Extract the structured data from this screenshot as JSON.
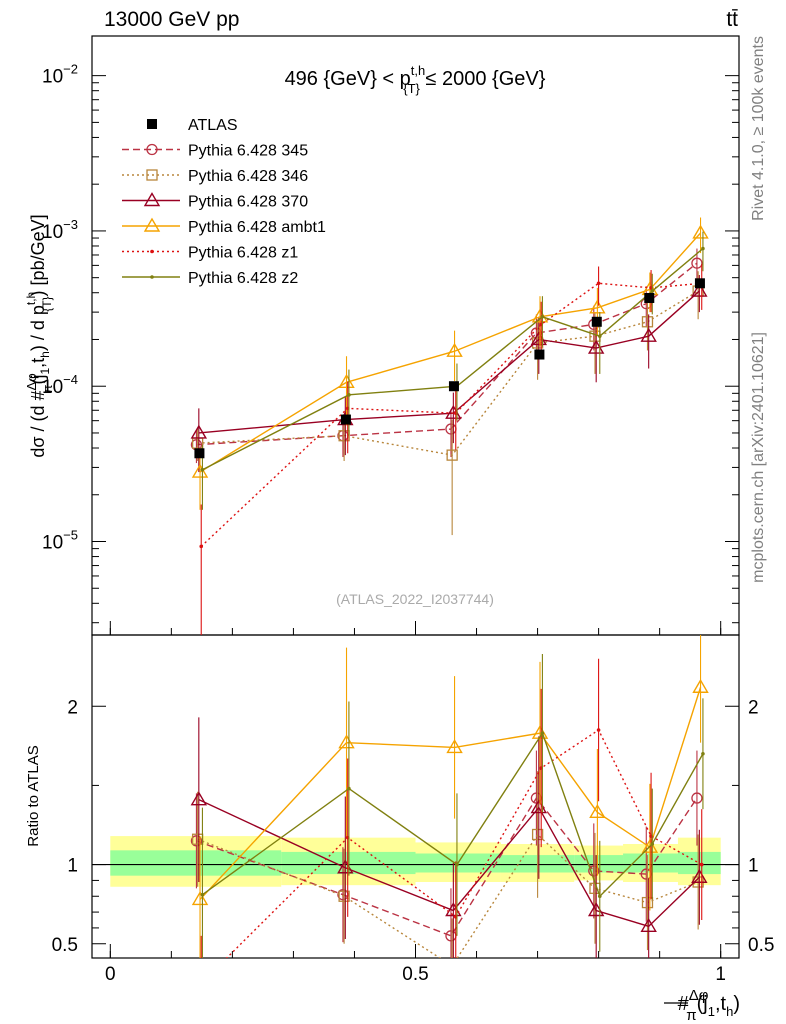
{
  "chart_data": {
    "type": "line",
    "header_left": "13000 GeV pp",
    "header_right": "tt̄",
    "title": "496 {GeV} < p{T}t,h ≤ 2000 {GeV}",
    "title_parts": {
      "left": "496 {GeV} < p",
      "sup": "t,h",
      "sub": "{T}",
      "right": " ≤ 2000 {GeV}"
    },
    "ylabel": "dσ / (d #Δφ/π(j1,th) / d p{T}t,h) [pb/GeV]",
    "ylabel_parts": {
      "a": "dσ / (d #",
      "frac_num": "Δφ",
      "frac_den": "π",
      "b": "(j",
      "b_sub": "1",
      "c": ",t",
      "c_sub": "h",
      "d": ") / d p",
      "d_sub": "{T}",
      "d_sup": "t,h",
      "e": ") [pb/GeV]"
    },
    "xlabel_parts": {
      "a": "#",
      "frac_num": "Δφ",
      "frac_den": "π",
      "b": "(j",
      "b_sub": "1",
      "c": ",t",
      "c_sub": "h",
      "d": ")"
    },
    "ratio_ylabel": "Ratio to ATLAS",
    "watermark": "(ATLAS_2022_I2037744)",
    "side_text_top": "Rivet 4.1.0, ≥ 100k events",
    "side_text_bottom": "mcplots.cern.ch [arXiv:2401.10621]",
    "xlim": [
      -0.03,
      1.03
    ],
    "ylim": [
      2.5e-06,
      0.018
    ],
    "ratio_ylim": [
      0.41,
      2.45
    ],
    "x_ticks": [
      {
        "v": 0,
        "label": "0"
      },
      {
        "v": 0.5,
        "label": "0.5"
      },
      {
        "v": 1,
        "label": "1"
      }
    ],
    "y_ticks": [
      {
        "v": 1e-05,
        "base": "10",
        "exp": "−5"
      },
      {
        "v": 0.0001,
        "base": "10",
        "exp": "−4"
      },
      {
        "v": 0.001,
        "base": "10",
        "exp": "−3"
      },
      {
        "v": 0.01,
        "base": "10",
        "exp": "−2"
      }
    ],
    "ratio_ticks": [
      {
        "v": 0.5,
        "label": "0.5"
      },
      {
        "v": 1,
        "label": "1"
      },
      {
        "v": 2,
        "label": "2"
      }
    ],
    "x": [
      0.146,
      0.386,
      0.563,
      0.703,
      0.797,
      0.883,
      0.966
    ],
    "data": {
      "name": "ATLAS",
      "values": [
        3.7e-05,
        6.1e-05,
        0.0001,
        0.00016,
        0.00026,
        0.00037,
        0.00046
      ],
      "band_edges": [
        0,
        0.28,
        0.5,
        0.64,
        0.76,
        0.84,
        0.93,
        1.0
      ],
      "band_inner": [
        [
          0.93,
          1.09
        ],
        [
          0.94,
          1.08
        ],
        [
          0.95,
          1.07
        ],
        [
          0.95,
          1.06
        ],
        [
          0.95,
          1.06
        ],
        [
          0.95,
          1.07
        ],
        [
          0.94,
          1.08
        ]
      ],
      "band_outer": [
        [
          0.86,
          1.18
        ],
        [
          0.87,
          1.17
        ],
        [
          0.89,
          1.14
        ],
        [
          0.89,
          1.13
        ],
        [
          0.9,
          1.12
        ],
        [
          0.89,
          1.13
        ],
        [
          0.87,
          1.17
        ]
      ]
    },
    "series": [
      {
        "name": "Pythia 6.428 345",
        "color": "#bb3344",
        "dash": "7,4",
        "marker": "circle",
        "values": [
          4.2e-05,
          4.8e-05,
          5.3e-05,
          0.00022,
          0.00025,
          0.00034,
          0.00062
        ],
        "err": [
          1e-05,
          1.3e-05,
          1.8e-05,
          7e-05,
          8e-05,
          0.0001,
          0.00015
        ],
        "ratio": [
          1.15,
          0.81,
          0.55,
          1.42,
          0.96,
          0.94,
          1.42
        ],
        "ratio_err": [
          0.3,
          0.3,
          0.3,
          0.3,
          0.3,
          0.3,
          0.3
        ]
      },
      {
        "name": "Pythia 6.428 346",
        "color": "#b8863b",
        "dash": "2,3",
        "marker": "square",
        "values": [
          4.3e-05,
          4.8e-05,
          3.6e-05,
          0.00019,
          0.00021,
          0.00026,
          0.00041
        ],
        "err": [
          1e-05,
          1.5e-05,
          2.5e-05,
          8e-05,
          9e-05,
          9e-05,
          0.00014
        ],
        "ratio": [
          1.16,
          0.8,
          0.36,
          1.19,
          0.85,
          0.76,
          0.89
        ],
        "ratio_err": [
          0.3,
          0.3,
          0.3,
          0.4,
          0.35,
          0.3,
          0.3
        ]
      },
      {
        "name": "Pythia 6.428 370",
        "color": "#990022",
        "dash": "",
        "marker": "triangle",
        "values": [
          5e-05,
          6.1e-05,
          6.7e-05,
          0.0002,
          0.000176,
          0.00021,
          0.00041
        ],
        "err": [
          2.2e-05,
          2.5e-05,
          2.4e-05,
          8e-05,
          7e-05,
          8e-05,
          0.00011
        ],
        "ratio": [
          1.41,
          0.98,
          0.71,
          1.36,
          0.71,
          0.61,
          0.92
        ],
        "ratio_err": [
          0.52,
          0.45,
          0.3,
          0.45,
          0.35,
          0.3,
          0.3
        ]
      },
      {
        "name": "Pythia 6.428 ambt1",
        "color": "#f5a300",
        "dash": "",
        "marker": "triangle",
        "values": [
          2.8e-05,
          0.000106,
          0.000168,
          0.00028,
          0.00032,
          0.00042,
          0.00097
        ],
        "err": [
          1.2e-05,
          5e-05,
          6e-05,
          0.0001,
          0.00011,
          0.00012,
          0.00025
        ],
        "ratio": [
          0.78,
          1.77,
          1.74,
          1.83,
          1.33,
          1.11,
          2.12
        ],
        "ratio_err": [
          0.4,
          0.6,
          0.45,
          0.45,
          0.4,
          0.4,
          0.35
        ]
      },
      {
        "name": "Pythia 6.428 z1",
        "color": "#dd1111",
        "dash": "2,3",
        "marker": "dot",
        "values": [
          9.3e-06,
          7.2e-05,
          6.7e-05,
          0.00025,
          0.00046,
          0.00043,
          0.00046
        ],
        "err": [
          8e-06,
          3.5e-05,
          2.8e-05,
          0.0001,
          0.00013,
          0.00013,
          0.00015
        ],
        "ratio": [
          0.25,
          1.17,
          0.67,
          1.61,
          1.85,
          1.18,
          1.0
        ],
        "ratio_err": [
          0.3,
          0.5,
          0.35,
          0.5,
          0.45,
          0.4,
          0.35
        ]
      },
      {
        "name": "Pythia 6.428 z2",
        "color": "#808010",
        "dash": "",
        "marker": "dot",
        "values": [
          2.9e-05,
          8.8e-05,
          0.0001,
          0.00028,
          0.00021,
          0.00041,
          0.00077
        ],
        "err": [
          1.3e-05,
          4e-05,
          4e-05,
          0.0001,
          9e-05,
          0.00012,
          0.00022
        ],
        "ratio": [
          0.81,
          1.48,
          1.0,
          1.83,
          0.8,
          1.13,
          1.7
        ],
        "ratio_err": [
          0.55,
          0.55,
          0.45,
          0.5,
          0.35,
          0.35,
          0.35
        ]
      }
    ]
  }
}
